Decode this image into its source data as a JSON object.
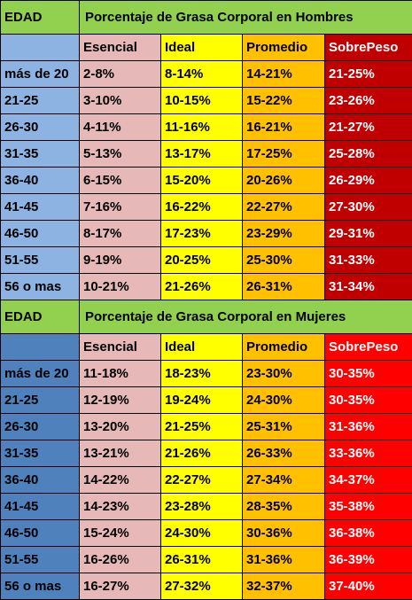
{
  "colors": {
    "title_bg": "#92d050",
    "men_age_bg": "#8db3e2",
    "women_age_bg": "#4f81bd",
    "esencial_bg": "#e6b8b7",
    "ideal_bg": "#ffff00",
    "promedio_bg": "#ffc000",
    "men_sobrepeso_bg": "#c00000",
    "women_sobrepeso_bg": "#ff0000"
  },
  "men": {
    "age_label": "EDAD",
    "title": "Porcentaje de Grasa Corporal en Hombres",
    "headers": [
      "Esencial",
      "Ideal",
      "Promedio",
      "SobrePeso"
    ],
    "rows": [
      [
        "más de 20",
        "2-8%",
        "8-14%",
        "14-21%",
        "21-25%"
      ],
      [
        "21-25",
        "3-10%",
        "10-15%",
        "15-22%",
        "23-26%"
      ],
      [
        "26-30",
        "4-11%",
        "11-16%",
        "16-21%",
        "21-27%"
      ],
      [
        "31-35",
        "5-13%",
        "13-17%",
        "17-25%",
        "25-28%"
      ],
      [
        "36-40",
        "6-15%",
        "15-20%",
        "20-26%",
        "26-29%"
      ],
      [
        "41-45",
        "7-16%",
        "16-22%",
        "22-27%",
        "27-30%"
      ],
      [
        "46-50",
        "8-17%",
        "17-23%",
        "23-29%",
        "29-31%"
      ],
      [
        "51-55",
        "9-19%",
        "20-25%",
        "25-30%",
        "31-33%"
      ],
      [
        "56 o mas",
        "10-21%",
        "21-26%",
        "26-31%",
        "31-34%"
      ]
    ]
  },
  "women": {
    "age_label": "EDAD",
    "title": "Porcentaje de Grasa Corporal en Mujeres",
    "headers": [
      "Esencial",
      "Ideal",
      "Promedio",
      "SobrePeso"
    ],
    "rows": [
      [
        "más de 20",
        "11-18%",
        "18-23%",
        "23-30%",
        "30-35%"
      ],
      [
        "21-25",
        "12-19%",
        "19-24%",
        "24-30%",
        "30-35%"
      ],
      [
        "26-30",
        "13-20%",
        "21-25%",
        "25-31%",
        "31-36%"
      ],
      [
        "31-35",
        "13-21%",
        "21-26%",
        "26-33%",
        "33-36%"
      ],
      [
        "36-40",
        "14-22%",
        "22-27%",
        "27-34%",
        "34-37%"
      ],
      [
        "41-45",
        "14-23%",
        "23-28%",
        "28-35%",
        "35-38%"
      ],
      [
        "46-50",
        "15-24%",
        "24-30%",
        "30-36%",
        "36-38%"
      ],
      [
        "51-55",
        "16-26%",
        "26-31%",
        "31-36%",
        "36-39%"
      ],
      [
        "56 o mas",
        "16-27%",
        "27-32%",
        "32-37%",
        "37-40%"
      ]
    ]
  }
}
